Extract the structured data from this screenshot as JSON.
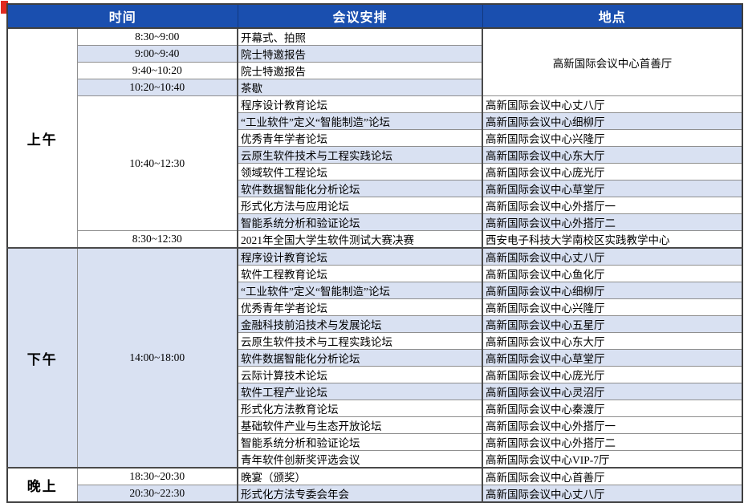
{
  "colors": {
    "header_bg": "#1a4faf",
    "header_text": "#ffffff",
    "row_shaded": "#d9e1f2",
    "accent_red": "#e02b20",
    "border_dark": "#4a4a4a",
    "border_light": "#8f8f8f"
  },
  "table": {
    "header": {
      "time": "时间",
      "agenda": "会议安排",
      "venue": "地点"
    },
    "rows": [
      {
        "sh": false,
        "cells": [
          {
            "c": "label",
            "t": "上午",
            "rs": 13,
            "bg": "white",
            "bb": true
          },
          {
            "c": "time",
            "t": "8:30~9:00"
          },
          {
            "c": "agenda",
            "t": "开幕式、拍照"
          },
          {
            "c": "venue",
            "t": "高新国际会议中心首善厅",
            "rs": 4,
            "bg": "white",
            "al": "center"
          }
        ]
      },
      {
        "sh": true,
        "cells": [
          {
            "c": "time",
            "t": "9:00~9:40"
          },
          {
            "c": "agenda",
            "t": "院士特邀报告"
          }
        ]
      },
      {
        "sh": false,
        "cells": [
          {
            "c": "time",
            "t": "9:40~10:20"
          },
          {
            "c": "agenda",
            "t": "院士特邀报告"
          }
        ]
      },
      {
        "sh": true,
        "cells": [
          {
            "c": "time",
            "t": "10:20~10:40"
          },
          {
            "c": "agenda",
            "t": "茶歇"
          }
        ]
      },
      {
        "sh": false,
        "cells": [
          {
            "c": "time",
            "t": "10:40~12:30",
            "rs": 8,
            "bg": "white"
          },
          {
            "c": "agenda",
            "t": "程序设计教育论坛"
          },
          {
            "c": "venue",
            "t": "高新国际会议中心丈八厅"
          }
        ]
      },
      {
        "sh": true,
        "cells": [
          {
            "c": "agenda",
            "t": "“工业软件”定义“智能制造”论坛"
          },
          {
            "c": "venue",
            "t": "高新国际会议中心细柳厅"
          }
        ]
      },
      {
        "sh": false,
        "cells": [
          {
            "c": "agenda",
            "t": "优秀青年学者论坛"
          },
          {
            "c": "venue",
            "t": "高新国际会议中心兴隆厅"
          }
        ]
      },
      {
        "sh": true,
        "cells": [
          {
            "c": "agenda",
            "t": "云原生软件技术与工程实践论坛"
          },
          {
            "c": "venue",
            "t": "高新国际会议中心东大厅"
          }
        ]
      },
      {
        "sh": false,
        "cells": [
          {
            "c": "agenda",
            "t": "领域软件工程论坛"
          },
          {
            "c": "venue",
            "t": "高新国际会议中心庞光厅"
          }
        ]
      },
      {
        "sh": true,
        "cells": [
          {
            "c": "agenda",
            "t": "软件数据智能化分析论坛"
          },
          {
            "c": "venue",
            "t": "高新国际会议中心草堂厅"
          }
        ]
      },
      {
        "sh": false,
        "cells": [
          {
            "c": "agenda",
            "t": "形式化方法与应用论坛"
          },
          {
            "c": "venue",
            "t": "高新国际会议中心外搭厅一"
          }
        ]
      },
      {
        "sh": true,
        "cells": [
          {
            "c": "agenda",
            "t": "智能系统分析和验证论坛"
          },
          {
            "c": "venue",
            "t": "高新国际会议中心外搭厅二"
          }
        ]
      },
      {
        "sh": false,
        "be": true,
        "cells": [
          {
            "c": "time",
            "t": "8:30~12:30"
          },
          {
            "c": "agenda",
            "t": "2021年全国大学生软件测试大赛决赛"
          },
          {
            "c": "venue",
            "t": "西安电子科技大学南校区实践教学中心"
          }
        ]
      },
      {
        "sh": true,
        "cells": [
          {
            "c": "label",
            "t": "下午",
            "rs": 13,
            "bg": "blue",
            "bb": true
          },
          {
            "c": "time",
            "t": "14:00~18:00",
            "rs": 13,
            "bg": "blue",
            "bb": true
          },
          {
            "c": "agenda",
            "t": "程序设计教育论坛"
          },
          {
            "c": "venue",
            "t": "高新国际会议中心丈八厅"
          }
        ]
      },
      {
        "sh": false,
        "cells": [
          {
            "c": "agenda",
            "t": "软件工程教育论坛"
          },
          {
            "c": "venue",
            "t": "高新国际会议中心鱼化厅"
          }
        ]
      },
      {
        "sh": true,
        "cells": [
          {
            "c": "agenda",
            "t": "“工业软件”定义“智能制造”论坛"
          },
          {
            "c": "venue",
            "t": "高新国际会议中心细柳厅"
          }
        ]
      },
      {
        "sh": false,
        "cells": [
          {
            "c": "agenda",
            "t": "优秀青年学者论坛"
          },
          {
            "c": "venue",
            "t": "高新国际会议中心兴隆厅"
          }
        ]
      },
      {
        "sh": true,
        "cells": [
          {
            "c": "agenda",
            "t": "金融科技前沿技术与发展论坛"
          },
          {
            "c": "venue",
            "t": "高新国际会议中心五星厅"
          }
        ]
      },
      {
        "sh": false,
        "cells": [
          {
            "c": "agenda",
            "t": "云原生软件技术与工程实践论坛"
          },
          {
            "c": "venue",
            "t": "高新国际会议中心东大厅"
          }
        ]
      },
      {
        "sh": true,
        "cells": [
          {
            "c": "agenda",
            "t": "软件数据智能化分析论坛"
          },
          {
            "c": "venue",
            "t": "高新国际会议中心草堂厅"
          }
        ]
      },
      {
        "sh": false,
        "cells": [
          {
            "c": "agenda",
            "t": "云际计算技术论坛"
          },
          {
            "c": "venue",
            "t": "高新国际会议中心庞光厅"
          }
        ]
      },
      {
        "sh": true,
        "cells": [
          {
            "c": "agenda",
            "t": "软件工程产业论坛"
          },
          {
            "c": "venue",
            "t": "高新国际会议中心灵沼厅"
          }
        ]
      },
      {
        "sh": false,
        "cells": [
          {
            "c": "agenda",
            "t": "形式化方法教育论坛"
          },
          {
            "c": "venue",
            "t": "高新国际会议中心秦渡厅"
          }
        ]
      },
      {
        "sh": false,
        "cells": [
          {
            "c": "agenda",
            "t": "基础软件产业与生态开放论坛"
          },
          {
            "c": "venue",
            "t": "高新国际会议中心外搭厅一"
          }
        ]
      },
      {
        "sh": false,
        "cells": [
          {
            "c": "agenda",
            "t": "智能系统分析和验证论坛"
          },
          {
            "c": "venue",
            "t": "高新国际会议中心外搭厅二"
          }
        ]
      },
      {
        "sh": false,
        "be": true,
        "cells": [
          {
            "c": "agenda",
            "t": "青年软件创新奖评选会议"
          },
          {
            "c": "venue",
            "t": "高新国际会议中心VIP-7厅"
          }
        ]
      },
      {
        "sh": false,
        "cells": [
          {
            "c": "label",
            "t": "晚上",
            "rs": 2,
            "bg": "white"
          },
          {
            "c": "time",
            "t": "18:30~20:30"
          },
          {
            "c": "agenda",
            "t": "晚宴（颁奖）"
          },
          {
            "c": "venue",
            "t": "高新国际会议中心首善厅"
          }
        ]
      },
      {
        "sh": true,
        "cells": [
          {
            "c": "time",
            "t": "20:30~22:30"
          },
          {
            "c": "agenda",
            "t": "形式化方法专委会年会"
          },
          {
            "c": "venue",
            "t": "高新国际会议中心丈八厅"
          }
        ]
      }
    ]
  }
}
